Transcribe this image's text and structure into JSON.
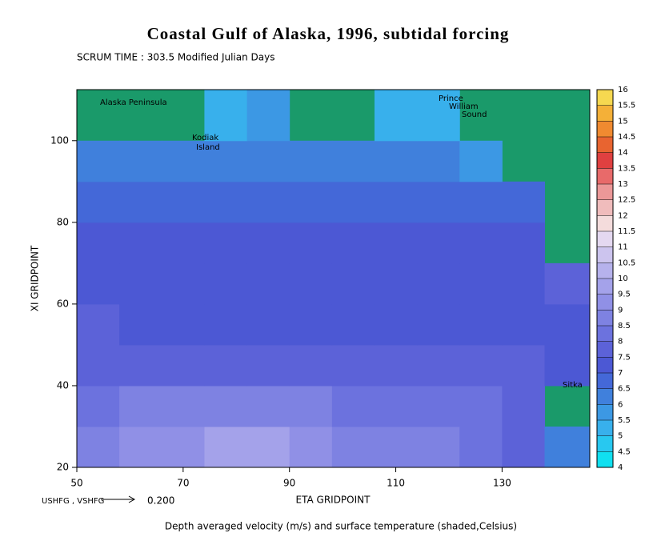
{
  "chart_data": {
    "type": "heatmap",
    "title": "Coastal Gulf of Alaska, 1996, subtidal forcing",
    "subtitle": "SCRUM TIME : 303.5 Modified Julian Days",
    "x_label": "ETA GRIDPOINT",
    "y_label": "XI GRIDPOINT",
    "footer": "Depth averaged velocity (m/s) and surface temperature (shaded,Celsius)",
    "xlim": [
      50,
      146.5
    ],
    "ylim": [
      20,
      112.5
    ],
    "xticks": [
      50,
      70,
      90,
      110,
      130
    ],
    "yticks": [
      20,
      40,
      60,
      80,
      100
    ],
    "x": [
      54,
      62,
      70,
      78,
      86,
      94,
      102,
      110,
      118,
      126,
      134,
      142
    ],
    "y": [
      25,
      35,
      45,
      55,
      65,
      75,
      85,
      95,
      105
    ],
    "z": [
      [
        8.5,
        9,
        9,
        9.5,
        9.5,
        9,
        8.5,
        8.5,
        8.5,
        8,
        7.5,
        6
      ],
      [
        8,
        8.5,
        8.5,
        8.5,
        8.5,
        8.5,
        8,
        8,
        8,
        8,
        7.5,
        null
      ],
      [
        7.5,
        7.5,
        7.5,
        7.5,
        7.5,
        7.5,
        7.5,
        7.5,
        7.5,
        7.5,
        7.5,
        7
      ],
      [
        7.5,
        7,
        7,
        7,
        7,
        7,
        7,
        7,
        7,
        7,
        7,
        7
      ],
      [
        7,
        7,
        7,
        7,
        7,
        7,
        7,
        7,
        7,
        7,
        7,
        7.5
      ],
      [
        7,
        7,
        7,
        7,
        7,
        7,
        7,
        7,
        7,
        7,
        7,
        null
      ],
      [
        6.5,
        6.5,
        6.5,
        6.5,
        6.5,
        6.5,
        6.5,
        6.5,
        6.5,
        6.5,
        6.5,
        null
      ],
      [
        6,
        6,
        6,
        6,
        6,
        6,
        6,
        6,
        6,
        5.5,
        null,
        null
      ],
      [
        null,
        null,
        null,
        5,
        5.5,
        null,
        null,
        5,
        5,
        null,
        null,
        null
      ]
    ],
    "land_color": "#1a9a6a",
    "colorbar": {
      "levels": [
        4,
        4.5,
        5,
        5.5,
        6,
        6.5,
        7,
        7.5,
        8,
        8.5,
        9,
        9.5,
        10,
        10.5,
        11,
        11.5,
        12,
        12.5,
        13,
        13.5,
        14,
        14.5,
        15,
        15.5,
        16
      ],
      "colors": [
        "#10e0f0",
        "#28c8f0",
        "#38b0ec",
        "#3c98e4",
        "#4080dc",
        "#4468d8",
        "#4c58d4",
        "#5c62d8",
        "#6c72de",
        "#7e82e2",
        "#9090e6",
        "#a4a2ea",
        "#b6b2ec",
        "#ccc4ee",
        "#e4d8f0",
        "#f4dcdc",
        "#f0bcbc",
        "#ec9898",
        "#e86a6a",
        "#e04040",
        "#e86430",
        "#f08a30",
        "#f4b038",
        "#f6d850"
      ]
    },
    "annotations": [
      [
        "Alaska Peninsula"
      ],
      [
        "Kodiak",
        "Island"
      ],
      [
        "Prince",
        "William",
        "Sound"
      ],
      [
        "Sitka"
      ]
    ],
    "vector_key_label": "USHFG , VSHFG",
    "vector_key": {
      "value": 0.2,
      "label": "0.200"
    }
  }
}
